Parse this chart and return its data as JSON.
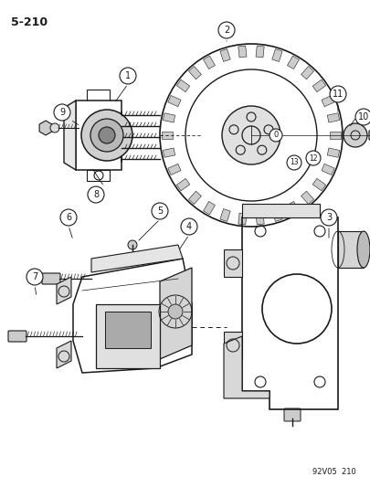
{
  "page_number": "5-210",
  "footer_text": "92V05  210",
  "background_color": "#ffffff",
  "line_color": "#1a1a1a",
  "fig_width": 4.05,
  "fig_height": 5.33,
  "dpi": 100
}
